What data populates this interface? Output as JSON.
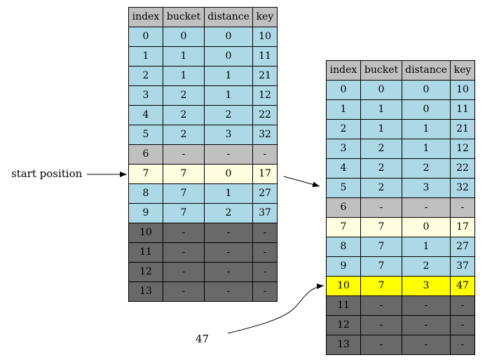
{
  "columns": [
    "index",
    "bucket",
    "distance",
    "key"
  ],
  "before_table": {
    "rows": [
      {
        "index": "0",
        "bucket": "0",
        "distance": "0",
        "key": "10",
        "state": "filled"
      },
      {
        "index": "1",
        "bucket": "1",
        "distance": "0",
        "key": "11",
        "state": "filled"
      },
      {
        "index": "2",
        "bucket": "1",
        "distance": "1",
        "key": "21",
        "state": "filled"
      },
      {
        "index": "3",
        "bucket": "2",
        "distance": "1",
        "key": "12",
        "state": "filled"
      },
      {
        "index": "4",
        "bucket": "2",
        "distance": "2",
        "key": "22",
        "state": "filled"
      },
      {
        "index": "5",
        "bucket": "2",
        "distance": "3",
        "key": "32",
        "state": "filled"
      },
      {
        "index": "6",
        "bucket": "-",
        "distance": "-",
        "key": "-",
        "state": "empty"
      },
      {
        "index": "7",
        "bucket": "7",
        "distance": "0",
        "key": "17",
        "state": "start"
      },
      {
        "index": "8",
        "bucket": "7",
        "distance": "1",
        "key": "27",
        "state": "filled"
      },
      {
        "index": "9",
        "bucket": "7",
        "distance": "2",
        "key": "37",
        "state": "filled"
      },
      {
        "index": "10",
        "bucket": "-",
        "distance": "-",
        "key": "-",
        "state": "unused"
      },
      {
        "index": "11",
        "bucket": "-",
        "distance": "-",
        "key": "-",
        "state": "unused"
      },
      {
        "index": "12",
        "bucket": "-",
        "distance": "-",
        "key": "-",
        "state": "unused"
      },
      {
        "index": "13",
        "bucket": "-",
        "distance": "-",
        "key": "-",
        "state": "unused"
      }
    ]
  },
  "after_table": {
    "rows": [
      {
        "index": "0",
        "bucket": "0",
        "distance": "0",
        "key": "10",
        "state": "filled"
      },
      {
        "index": "1",
        "bucket": "1",
        "distance": "0",
        "key": "11",
        "state": "filled"
      },
      {
        "index": "2",
        "bucket": "1",
        "distance": "1",
        "key": "21",
        "state": "filled"
      },
      {
        "index": "3",
        "bucket": "2",
        "distance": "1",
        "key": "12",
        "state": "filled"
      },
      {
        "index": "4",
        "bucket": "2",
        "distance": "2",
        "key": "22",
        "state": "filled"
      },
      {
        "index": "5",
        "bucket": "2",
        "distance": "3",
        "key": "32",
        "state": "filled"
      },
      {
        "index": "6",
        "bucket": "-",
        "distance": "-",
        "key": "-",
        "state": "empty"
      },
      {
        "index": "7",
        "bucket": "7",
        "distance": "0",
        "key": "17",
        "state": "start"
      },
      {
        "index": "8",
        "bucket": "7",
        "distance": "1",
        "key": "27",
        "state": "filled"
      },
      {
        "index": "9",
        "bucket": "7",
        "distance": "2",
        "key": "37",
        "state": "filled"
      },
      {
        "index": "10",
        "bucket": "7",
        "distance": "3",
        "key": "47",
        "state": "inserted"
      },
      {
        "index": "11",
        "bucket": "-",
        "distance": "-",
        "key": "-",
        "state": "unused"
      },
      {
        "index": "12",
        "bucket": "-",
        "distance": "-",
        "key": "-",
        "state": "unused"
      },
      {
        "index": "13",
        "bucket": "-",
        "distance": "-",
        "key": "-",
        "state": "unused"
      }
    ]
  },
  "labels": {
    "start_position": "start position",
    "inserted_key": "47"
  },
  "colors": {
    "header": "#c0c0c0",
    "filled": "#add8e6",
    "empty": "#c0c0c0",
    "start": "#fffde0",
    "inserted": "#ffff00",
    "unused": "#696969"
  }
}
